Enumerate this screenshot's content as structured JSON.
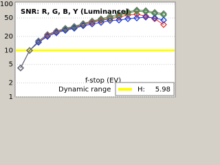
{
  "chart_data": {
    "type": "line",
    "title": "SNR: R, G, B, Y (Luminance)",
    "x_label": "f-stop (EV)",
    "categories": [
      null,
      null,
      null,
      null,
      null,
      null,
      null,
      null,
      null,
      null,
      null,
      null,
      null,
      null,
      null,
      null,
      null
    ],
    "series": [
      {
        "name": "R",
        "color": "#e0302a",
        "values": [
          4.2,
          10,
          15,
          21,
          25,
          28,
          31,
          35,
          40,
          44,
          48,
          52,
          58,
          60,
          55,
          48,
          36
        ]
      },
      {
        "name": "G",
        "color": "#2f9a2f",
        "values": [
          4.2,
          10,
          16,
          22,
          26,
          29,
          32,
          37,
          42,
          46,
          50,
          56,
          64,
          70,
          68,
          62,
          58
        ]
      },
      {
        "name": "B",
        "color": "#1a3adc",
        "values": [
          4.2,
          10,
          15,
          20,
          24,
          27,
          30,
          34,
          37,
          40,
          44,
          45,
          48,
          50,
          52,
          50,
          45
        ]
      },
      {
        "name": "Y",
        "color": "#707070",
        "values": [
          4.2,
          10,
          16,
          22,
          26,
          30,
          33,
          38,
          43,
          48,
          54,
          60,
          68,
          74,
          72,
          66,
          62
        ]
      }
    ],
    "log_y": true,
    "ylim": [
      1,
      110
    ],
    "yticks": [
      1,
      2,
      5,
      10,
      20,
      50,
      100
    ],
    "grid": true,
    "reference_line": {
      "value": 10,
      "color": "#ffff00"
    },
    "legend": {
      "title": "Dynamic range",
      "label": "H:",
      "value": 5.98
    }
  }
}
